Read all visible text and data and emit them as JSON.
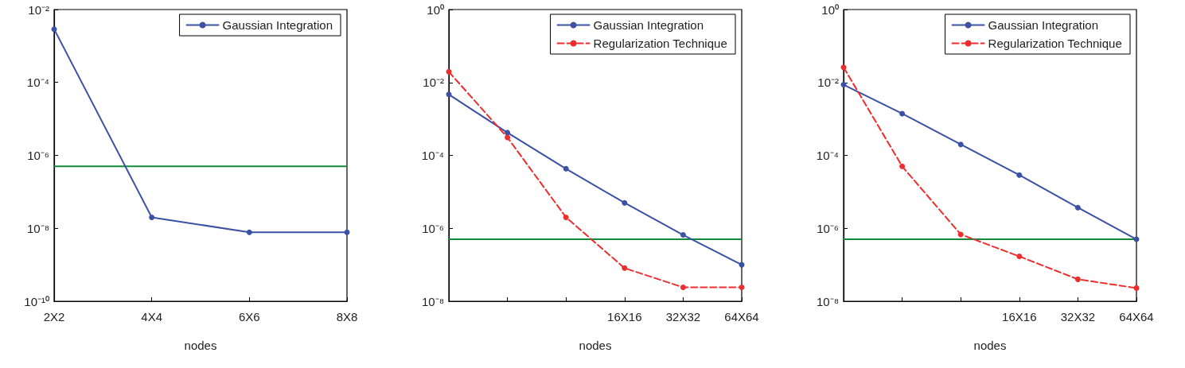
{
  "chart_data": [
    {
      "type": "line",
      "xlabel": "nodes",
      "categories": [
        "2X2",
        "4X4",
        "6X6",
        "8X8"
      ],
      "log": "y",
      "ylim": [
        1e-10,
        0.01
      ],
      "yticks": [
        {
          "value": 1e-10,
          "label": "10⁻¹⁰"
        },
        {
          "value": 1e-08,
          "label": "10⁻⁸"
        },
        {
          "value": 1e-06,
          "label": "10⁻⁶"
        },
        {
          "value": 0.0001,
          "label": "10⁻⁴"
        },
        {
          "value": 0.01,
          "label": "10⁻²"
        }
      ],
      "series": [
        {
          "name": "Gaussian Integration",
          "color": "#3a51a4",
          "values": [
            0.0029,
            2e-08,
            7.8e-09,
            7.8e-09
          ]
        }
      ],
      "ref_lines": [
        {
          "axis": "y",
          "value": 5e-07,
          "color": "#138a3a"
        }
      ],
      "marker": "circle",
      "line_style": "solid",
      "legend": "top right",
      "grid": false
    },
    {
      "type": "line",
      "xlabel": "nodes",
      "categories": [
        null,
        null,
        null,
        "16X16",
        "32X32",
        "64X64"
      ],
      "log": "y",
      "ylim": [
        1e-08,
        1
      ],
      "yticks": [
        {
          "value": 1e-08,
          "label": "10⁻⁸"
        },
        {
          "value": 1e-06,
          "label": "10⁻⁶"
        },
        {
          "value": 0.0001,
          "label": "10⁻⁴"
        },
        {
          "value": 0.01,
          "label": "10⁻²"
        },
        {
          "value": 1,
          "label": "10⁰"
        }
      ],
      "series": [
        {
          "name": "Gaussian Integration",
          "color": "#3a51a4",
          "values": [
            0.0047,
            0.00042,
            4.3e-05,
            5e-06,
            6.6e-07,
            1e-07
          ]
        },
        {
          "name": "Regularization Technique",
          "color": "#ee2d2d",
          "line_style": "dashed",
          "values": [
            0.0196,
            0.00031,
            2e-06,
            8.1e-08,
            2.4e-08,
            2.4e-08
          ]
        }
      ],
      "ref_lines": [
        {
          "axis": "y",
          "value": 5e-07,
          "color": "#138a3a"
        }
      ],
      "marker": "circle",
      "line_style": "solid",
      "legend": "top right",
      "grid": false
    },
    {
      "type": "line",
      "xlabel": "nodes",
      "categories": [
        null,
        null,
        null,
        "16X16",
        "32X32",
        "64X64"
      ],
      "log": "y",
      "ylim": [
        1e-08,
        1
      ],
      "yticks": [
        {
          "value": 1e-08,
          "label": "10⁻⁸"
        },
        {
          "value": 1e-06,
          "label": "10⁻⁶"
        },
        {
          "value": 0.0001,
          "label": "10⁻⁴"
        },
        {
          "value": 0.01,
          "label": "10⁻²"
        },
        {
          "value": 1,
          "label": "10⁰"
        }
      ],
      "series": [
        {
          "name": "Gaussian Integration",
          "color": "#3a51a4",
          "values": [
            0.0087,
            0.0014,
            0.0002,
            2.9e-05,
            3.7e-06,
            5e-07
          ]
        },
        {
          "name": "Regularization Technique",
          "color": "#ee2d2d",
          "line_style": "dashed",
          "values": [
            0.026,
            5e-05,
            6.8e-07,
            1.7e-07,
            4e-08,
            2.3e-08
          ]
        }
      ],
      "ref_lines": [
        {
          "axis": "y",
          "value": 5e-07,
          "color": "#138a3a"
        }
      ],
      "marker": "circle",
      "line_style": "solid",
      "legend": "top right",
      "grid": false
    }
  ]
}
